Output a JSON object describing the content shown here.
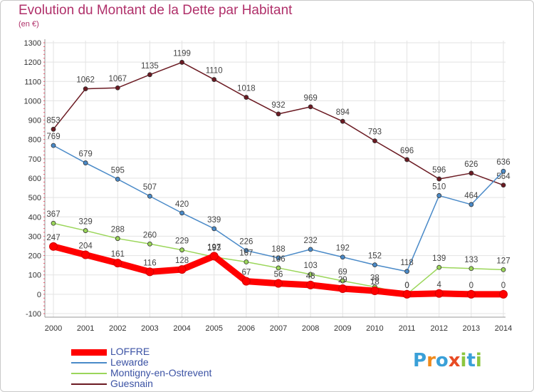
{
  "title": "Evolution du Montant de la Dette par Habitant",
  "unit": "(en €)",
  "logo": {
    "text": "Proxiti",
    "letters": [
      "P",
      "r",
      "o",
      "x",
      "i",
      "t",
      "i"
    ],
    "colors": [
      "#3aa0d8",
      "#f08a1c",
      "#3aa0d8",
      "#e84b24",
      "#8cc63f",
      "#3aa0d8",
      "#8cc63f"
    ]
  },
  "chart_data": {
    "type": "line",
    "x": [
      "2000",
      "2001",
      "2002",
      "2003",
      "2004",
      "2005",
      "2006",
      "2007",
      "2008",
      "2009",
      "2010",
      "2011",
      "2012",
      "2013",
      "2014"
    ],
    "ylim": [
      -100,
      1300
    ],
    "yticks": [
      -100,
      0,
      100,
      200,
      300,
      400,
      500,
      600,
      700,
      800,
      900,
      1000,
      1100,
      1200,
      1300
    ],
    "grid": true,
    "legend_position": "bottom-left",
    "series": [
      {
        "name": "Guesnain",
        "color": "#6b1a22",
        "values": [
          853,
          1062,
          1067,
          1135,
          1199,
          1110,
          1018,
          932,
          969,
          894,
          793,
          696,
          596,
          626,
          564
        ]
      },
      {
        "name": "Lewarde",
        "color": "#4a8ac8",
        "values": [
          769,
          679,
          595,
          507,
          420,
          339,
          226,
          188,
          232,
          192,
          152,
          118,
          510,
          464,
          636
        ]
      },
      {
        "name": "Montigny-en-Ostrevent",
        "color": "#9bd65a",
        "values": [
          367,
          329,
          288,
          260,
          229,
          193,
          167,
          136,
          103,
          69,
          38,
          0,
          139,
          133,
          127
        ]
      },
      {
        "name": "LOFFRE",
        "color": "#ff0000",
        "values": [
          247,
          204,
          161,
          116,
          128,
          197,
          67,
          56,
          48,
          29,
          18,
          0,
          4,
          0,
          0
        ]
      }
    ]
  },
  "legend": [
    {
      "name": "LOFFRE",
      "color": "#ff0000",
      "weight": "thick"
    },
    {
      "name": "Lewarde",
      "color": "#4a8ac8",
      "weight": "thin"
    },
    {
      "name": "Montigny-en-Ostrevent",
      "color": "#9bd65a",
      "weight": "thin"
    },
    {
      "name": "Guesnain",
      "color": "#6b1a22",
      "weight": "thin"
    }
  ]
}
